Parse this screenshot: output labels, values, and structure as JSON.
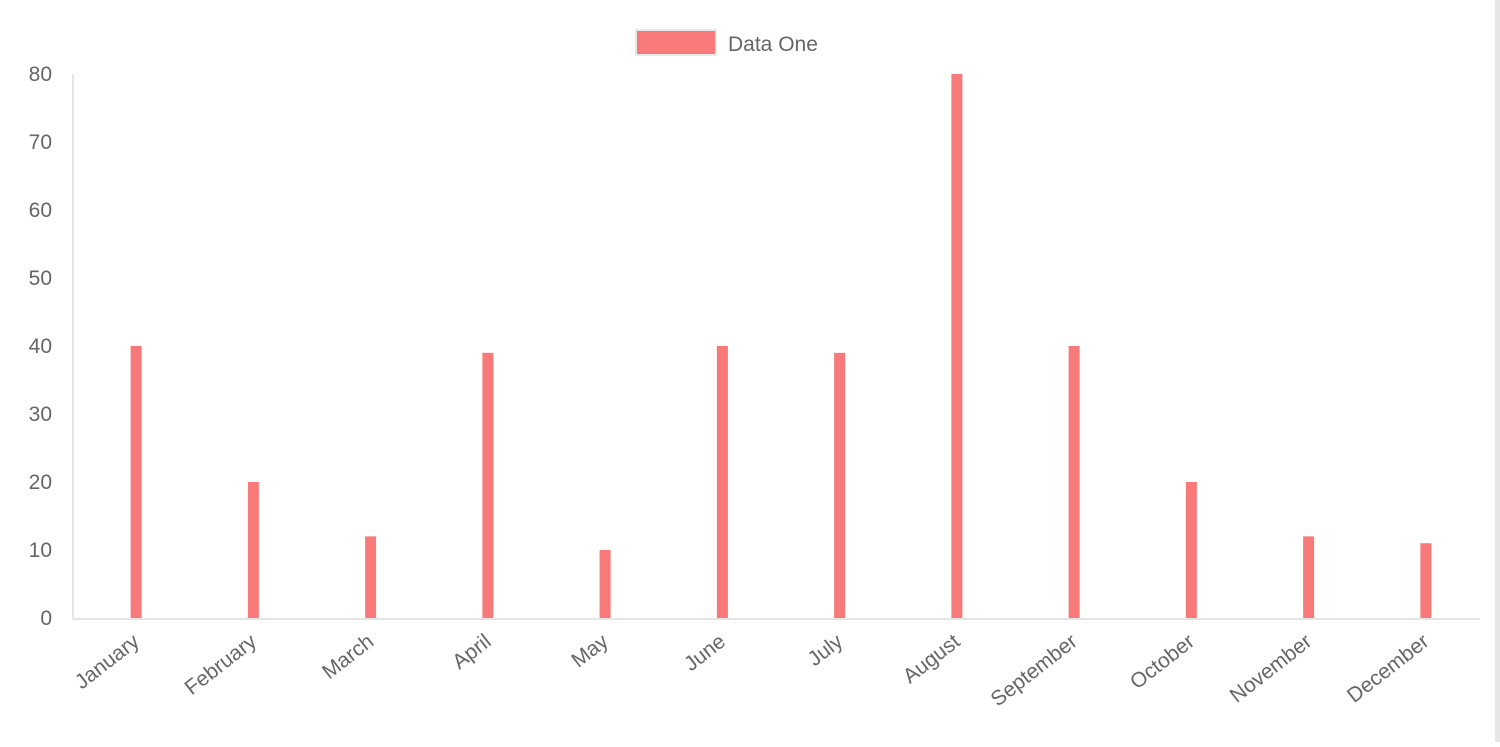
{
  "chart_data": {
    "type": "bar",
    "categories": [
      "January",
      "February",
      "March",
      "April",
      "May",
      "June",
      "July",
      "August",
      "September",
      "October",
      "November",
      "December"
    ],
    "series": [
      {
        "name": "Data One",
        "values": [
          40,
          20,
          12,
          39,
          10,
          40,
          39,
          80,
          40,
          20,
          12,
          11
        ],
        "color": "#f87979"
      }
    ],
    "yticks": [
      0,
      10,
      20,
      30,
      40,
      50,
      60,
      70,
      80
    ],
    "ylim": [
      0,
      80
    ],
    "legend": "top-center",
    "grid": false
  }
}
